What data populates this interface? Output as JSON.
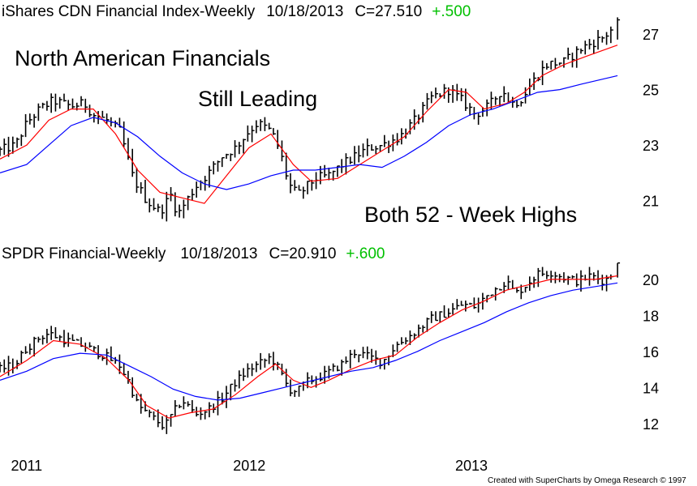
{
  "chart_data": [
    {
      "type": "ohlc",
      "header": {
        "name": "iShares CDN Financial Index-Weekly",
        "date": "10/18/2013",
        "close": "C=27.510",
        "change": "+.500"
      },
      "annotations": [
        "North American Financials",
        "Still Leading",
        "Both 52 - Week Highs"
      ],
      "y_ticks": [
        "27",
        "25",
        "23",
        "21"
      ],
      "ylim": [
        20.0,
        27.7
      ],
      "anchors": [
        [
          2010.98,
          22.8
        ],
        [
          2011.05,
          23.0
        ],
        [
          2011.1,
          23.8
        ],
        [
          2011.16,
          24.3
        ],
        [
          2011.22,
          24.6
        ],
        [
          2011.3,
          24.4
        ],
        [
          2011.36,
          24.5
        ],
        [
          2011.4,
          24.1
        ],
        [
          2011.46,
          23.9
        ],
        [
          2011.52,
          23.5
        ],
        [
          2011.58,
          21.8
        ],
        [
          2011.64,
          21.0
        ],
        [
          2011.7,
          20.6
        ],
        [
          2011.75,
          21.2
        ],
        [
          2011.78,
          20.5
        ],
        [
          2011.82,
          21.0
        ],
        [
          2011.86,
          21.5
        ],
        [
          2011.92,
          22.0
        ],
        [
          2011.98,
          22.6
        ],
        [
          2012.04,
          22.9
        ],
        [
          2012.1,
          23.5
        ],
        [
          2012.14,
          23.8
        ],
        [
          2012.2,
          23.5
        ],
        [
          2012.24,
          22.8
        ],
        [
          2012.28,
          21.6
        ],
        [
          2012.32,
          21.2
        ],
        [
          2012.36,
          21.5
        ],
        [
          2012.4,
          21.8
        ],
        [
          2012.46,
          21.9
        ],
        [
          2012.52,
          22.3
        ],
        [
          2012.58,
          22.6
        ],
        [
          2012.64,
          22.9
        ],
        [
          2012.7,
          23.0
        ],
        [
          2012.78,
          23.3
        ],
        [
          2012.86,
          24.0
        ],
        [
          2012.92,
          24.7
        ],
        [
          2013.0,
          25.0
        ],
        [
          2013.06,
          24.6
        ],
        [
          2013.12,
          24.1
        ],
        [
          2013.18,
          24.4
        ],
        [
          2013.24,
          25.0
        ],
        [
          2013.28,
          24.5
        ],
        [
          2013.32,
          24.6
        ],
        [
          2013.38,
          25.3
        ],
        [
          2013.44,
          25.9
        ],
        [
          2013.52,
          26.0
        ],
        [
          2013.6,
          26.5
        ],
        [
          2013.7,
          26.9
        ],
        [
          2013.76,
          27.4
        ]
      ],
      "ma_short": [
        [
          2010.98,
          22.5
        ],
        [
          2011.1,
          23.0
        ],
        [
          2011.2,
          23.9
        ],
        [
          2011.3,
          24.3
        ],
        [
          2011.4,
          24.3
        ],
        [
          2011.5,
          23.4
        ],
        [
          2011.6,
          22.1
        ],
        [
          2011.7,
          21.3
        ],
        [
          2011.8,
          21.1
        ],
        [
          2011.9,
          20.9
        ],
        [
          2012.0,
          21.9
        ],
        [
          2012.1,
          22.9
        ],
        [
          2012.2,
          23.4
        ],
        [
          2012.3,
          22.3
        ],
        [
          2012.38,
          21.7
        ],
        [
          2012.5,
          21.8
        ],
        [
          2012.6,
          22.3
        ],
        [
          2012.7,
          22.8
        ],
        [
          2012.8,
          23.3
        ],
        [
          2012.9,
          24.2
        ],
        [
          2013.0,
          25.0
        ],
        [
          2013.08,
          24.9
        ],
        [
          2013.16,
          24.3
        ],
        [
          2013.26,
          24.5
        ],
        [
          2013.34,
          24.9
        ],
        [
          2013.42,
          25.5
        ],
        [
          2013.52,
          25.9
        ],
        [
          2013.62,
          26.2
        ],
        [
          2013.76,
          26.6
        ]
      ],
      "ma_long": [
        [
          2010.98,
          22.0
        ],
        [
          2011.1,
          22.3
        ],
        [
          2011.2,
          23.0
        ],
        [
          2011.3,
          23.7
        ],
        [
          2011.4,
          24.0
        ],
        [
          2011.5,
          23.8
        ],
        [
          2011.6,
          23.3
        ],
        [
          2011.7,
          22.6
        ],
        [
          2011.8,
          22.0
        ],
        [
          2011.9,
          21.6
        ],
        [
          2012.0,
          21.4
        ],
        [
          2012.1,
          21.6
        ],
        [
          2012.2,
          21.9
        ],
        [
          2012.3,
          22.1
        ],
        [
          2012.4,
          22.1
        ],
        [
          2012.5,
          22.2
        ],
        [
          2012.6,
          22.3
        ],
        [
          2012.7,
          22.2
        ],
        [
          2012.8,
          22.6
        ],
        [
          2012.9,
          23.1
        ],
        [
          2013.0,
          23.7
        ],
        [
          2013.1,
          24.1
        ],
        [
          2013.2,
          24.3
        ],
        [
          2013.3,
          24.6
        ],
        [
          2013.4,
          24.9
        ],
        [
          2013.5,
          25.0
        ],
        [
          2013.6,
          25.2
        ],
        [
          2013.76,
          25.5
        ]
      ],
      "last_bar": {
        "open": 27.0,
        "high": 27.6,
        "low": 26.8,
        "close": 27.51
      }
    },
    {
      "type": "ohlc",
      "header": {
        "name": "SPDR Financial-Weekly",
        "date": "10/18/2013",
        "close": "C=20.910",
        "change": "+.600"
      },
      "y_ticks": [
        "20",
        "18",
        "16",
        "14",
        "12"
      ],
      "ylim": [
        11.0,
        21.3
      ],
      "anchors": [
        [
          2010.98,
          15.0
        ],
        [
          2011.05,
          15.3
        ],
        [
          2011.1,
          16.2
        ],
        [
          2011.16,
          16.8
        ],
        [
          2011.2,
          17.0
        ],
        [
          2011.28,
          16.6
        ],
        [
          2011.36,
          16.3
        ],
        [
          2011.46,
          15.7
        ],
        [
          2011.52,
          15.2
        ],
        [
          2011.56,
          14.3
        ],
        [
          2011.6,
          13.0
        ],
        [
          2011.66,
          12.4
        ],
        [
          2011.72,
          11.8
        ],
        [
          2011.76,
          12.6
        ],
        [
          2011.8,
          13.3
        ],
        [
          2011.86,
          12.5
        ],
        [
          2011.92,
          12.8
        ],
        [
          2011.98,
          13.4
        ],
        [
          2012.04,
          14.3
        ],
        [
          2012.1,
          15.0
        ],
        [
          2012.16,
          15.4
        ],
        [
          2012.2,
          15.7
        ],
        [
          2012.24,
          14.9
        ],
        [
          2012.28,
          13.9
        ],
        [
          2012.32,
          13.8
        ],
        [
          2012.36,
          14.3
        ],
        [
          2012.44,
          14.7
        ],
        [
          2012.52,
          15.3
        ],
        [
          2012.58,
          16.0
        ],
        [
          2012.64,
          15.7
        ],
        [
          2012.7,
          15.4
        ],
        [
          2012.76,
          16.3
        ],
        [
          2012.84,
          17.0
        ],
        [
          2012.92,
          17.8
        ],
        [
          2013.0,
          18.2
        ],
        [
          2013.06,
          18.6
        ],
        [
          2013.12,
          18.5
        ],
        [
          2013.2,
          19.4
        ],
        [
          2013.26,
          19.9
        ],
        [
          2013.3,
          19.2
        ],
        [
          2013.34,
          19.6
        ],
        [
          2013.4,
          20.3
        ],
        [
          2013.46,
          20.4
        ],
        [
          2013.52,
          20.1
        ],
        [
          2013.58,
          19.9
        ],
        [
          2013.64,
          20.2
        ],
        [
          2013.7,
          19.9
        ],
        [
          2013.76,
          20.6
        ]
      ],
      "ma_short": [
        [
          2010.98,
          14.6
        ],
        [
          2011.1,
          15.5
        ],
        [
          2011.22,
          16.6
        ],
        [
          2011.34,
          16.4
        ],
        [
          2011.46,
          15.6
        ],
        [
          2011.56,
          14.4
        ],
        [
          2011.64,
          13.0
        ],
        [
          2011.74,
          12.3
        ],
        [
          2011.84,
          12.6
        ],
        [
          2011.94,
          12.8
        ],
        [
          2012.04,
          13.6
        ],
        [
          2012.14,
          14.6
        ],
        [
          2012.22,
          15.3
        ],
        [
          2012.3,
          14.4
        ],
        [
          2012.38,
          14.0
        ],
        [
          2012.46,
          14.4
        ],
        [
          2012.56,
          15.0
        ],
        [
          2012.66,
          15.5
        ],
        [
          2012.76,
          15.8
        ],
        [
          2012.86,
          16.8
        ],
        [
          2012.96,
          17.6
        ],
        [
          2013.06,
          18.3
        ],
        [
          2013.16,
          18.8
        ],
        [
          2013.26,
          19.4
        ],
        [
          2013.36,
          19.7
        ],
        [
          2013.46,
          20.0
        ],
        [
          2013.56,
          20.0
        ],
        [
          2013.66,
          20.0
        ],
        [
          2013.76,
          20.2
        ]
      ],
      "ma_long": [
        [
          2010.98,
          14.4
        ],
        [
          2011.1,
          14.9
        ],
        [
          2011.22,
          15.6
        ],
        [
          2011.34,
          15.9
        ],
        [
          2011.46,
          15.8
        ],
        [
          2011.56,
          15.2
        ],
        [
          2011.66,
          14.6
        ],
        [
          2011.76,
          13.9
        ],
        [
          2011.86,
          13.5
        ],
        [
          2011.96,
          13.3
        ],
        [
          2012.06,
          13.4
        ],
        [
          2012.16,
          13.7
        ],
        [
          2012.26,
          14.0
        ],
        [
          2012.36,
          14.3
        ],
        [
          2012.46,
          14.6
        ],
        [
          2012.56,
          14.9
        ],
        [
          2012.66,
          15.1
        ],
        [
          2012.76,
          15.5
        ],
        [
          2012.86,
          16.0
        ],
        [
          2012.96,
          16.6
        ],
        [
          2013.06,
          17.1
        ],
        [
          2013.16,
          17.6
        ],
        [
          2013.26,
          18.2
        ],
        [
          2013.36,
          18.7
        ],
        [
          2013.46,
          19.1
        ],
        [
          2013.56,
          19.4
        ],
        [
          2013.66,
          19.6
        ],
        [
          2013.76,
          19.8
        ]
      ],
      "last_bar": {
        "open": 20.3,
        "high": 20.9,
        "low": 20.1,
        "close": 20.91
      }
    }
  ],
  "x_axis": {
    "labels": [
      "2011",
      "2012",
      "2013"
    ],
    "positions": [
      2011.0,
      2012.0,
      2013.0
    ]
  },
  "colors": {
    "bars": "#000000",
    "ma_short": "#ff0000",
    "ma_long": "#0000ff",
    "change": "#00c000"
  },
  "footer": {
    "credit": "Created with SuperCharts by Omega Research © 1997"
  }
}
